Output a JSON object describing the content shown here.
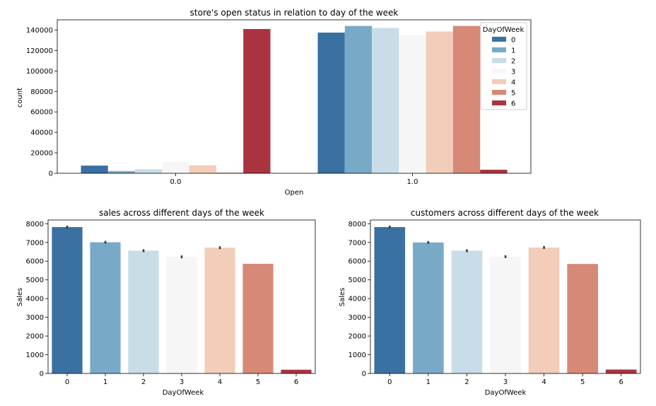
{
  "palette": [
    "#3a70a2",
    "#78aac8",
    "#c8dde8",
    "#f6f6f6",
    "#f2cdb9",
    "#d68977",
    "#a93440"
  ],
  "chart_data": [
    {
      "type": "bar",
      "title": "store's open status in relation to day of the week",
      "xlabel": "Open",
      "ylabel": "count",
      "categories": [
        "0.0",
        "1.0"
      ],
      "ylim": [
        0,
        150000
      ],
      "yticks": [
        0,
        20000,
        40000,
        60000,
        80000,
        100000,
        120000,
        140000
      ],
      "legend": {
        "title": "DayOfWeek",
        "placement": "top-right"
      },
      "series": [
        {
          "name": "0",
          "values": [
            7500,
            137500
          ]
        },
        {
          "name": "1",
          "values": [
            2200,
            144000
          ]
        },
        {
          "name": "2",
          "values": [
            4000,
            142000
          ]
        },
        {
          "name": "3",
          "values": [
            11000,
            135000
          ]
        },
        {
          "name": "4",
          "values": [
            7800,
            138500
          ]
        },
        {
          "name": "5",
          "values": [
            600,
            144000
          ]
        },
        {
          "name": "6",
          "values": [
            141000,
            3500
          ]
        }
      ]
    },
    {
      "type": "bar",
      "title": "sales across different days of the week",
      "xlabel": "DayOfWeek",
      "ylabel": "Sales",
      "categories": [
        "0",
        "1",
        "2",
        "3",
        "4",
        "5",
        "6"
      ],
      "values": [
        7820,
        7010,
        6560,
        6230,
        6720,
        5860,
        200
      ],
      "ylim": [
        0,
        8200
      ],
      "yticks": [
        0,
        1000,
        2000,
        3000,
        4000,
        5000,
        6000,
        7000,
        8000
      ]
    },
    {
      "type": "bar",
      "title": "customers across different days of the week",
      "xlabel": "DayOfWeek",
      "ylabel": "Sales",
      "categories": [
        "0",
        "1",
        "2",
        "3",
        "4",
        "5",
        "6"
      ],
      "values": [
        7820,
        7000,
        6560,
        6240,
        6730,
        5850,
        210
      ],
      "ylim": [
        0,
        8200
      ],
      "yticks": [
        0,
        1000,
        2000,
        3000,
        4000,
        5000,
        6000,
        7000,
        8000
      ]
    }
  ]
}
